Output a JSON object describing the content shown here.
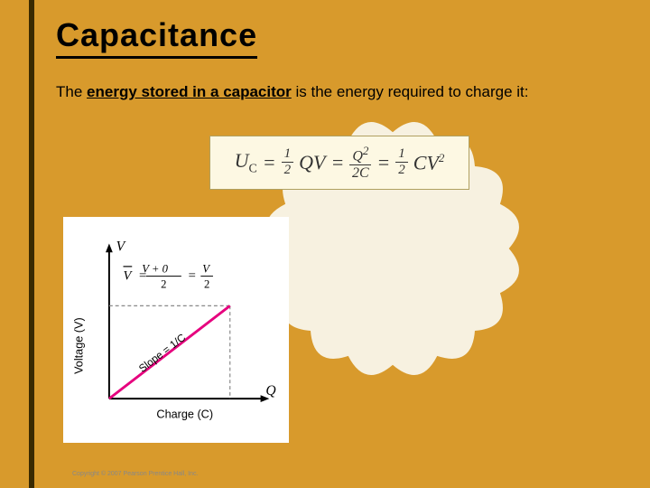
{
  "title": "Capacitance",
  "body": {
    "prefix": "The ",
    "underlined": "energy stored in a capacitor",
    "suffix": " is the energy required to charge it:"
  },
  "formula": {
    "lhs_var": "U",
    "lhs_sub": "C",
    "eq": "=",
    "half": "½",
    "term1_a": "Q",
    "term1_b": "V",
    "frac_num_a": "Q",
    "frac_num_sup": "2",
    "frac_den_a": "2",
    "frac_den_b": "C",
    "term3_a": "C",
    "term3_b": "V",
    "term3_sup": "2",
    "box_bg": "#fdf8e3",
    "box_border": "#b0a060"
  },
  "graph": {
    "y_axis_top_label": "V",
    "y_axis_title": "Voltage (V)",
    "x_axis_right_label": "Q",
    "x_axis_title": "Charge (C)",
    "slope_label": "Slope = 1/C",
    "vbar_formula_lhs": "V̄",
    "vbar_formula_eq": "=",
    "vbar_frac1_num": "V + 0",
    "vbar_frac1_den": "2",
    "vbar_frac2_num": "V",
    "vbar_frac2_den": "2",
    "line_color": "#e6007e",
    "axis_color": "#000000",
    "dash_color": "#888888",
    "copyright": "Copyright © 2007 Pearson Prentice Hall, Inc.",
    "x_end": 0.78,
    "y_end": 0.62
  },
  "badge": {
    "fill": "#f7f1e0",
    "lobes": 16
  },
  "colors": {
    "page_bg": "#d89a2c",
    "accent_bar": "#3a2a00"
  }
}
